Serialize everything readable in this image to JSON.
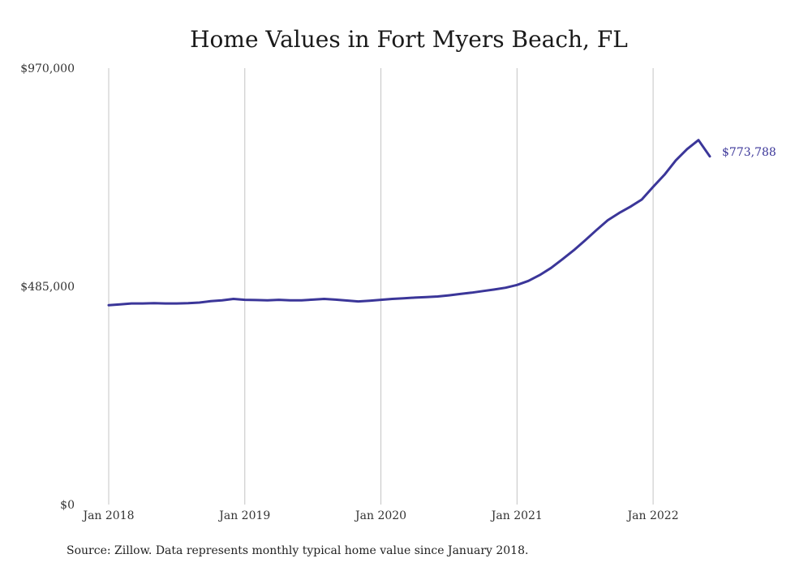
{
  "chart_data": {
    "type": "line",
    "title": "Home Values in Fort Myers Beach, FL",
    "xlabel": "",
    "ylabel": "",
    "ylim": [
      0,
      970000
    ],
    "y_ticks": [
      {
        "value": 0,
        "label": "$0"
      },
      {
        "value": 485000,
        "label": "$485,000"
      },
      {
        "value": 970000,
        "label": "$970,000"
      }
    ],
    "x_ticks": [
      {
        "value": "2018-01",
        "label": "Jan 2018"
      },
      {
        "value": "2019-01",
        "label": "Jan 2019"
      },
      {
        "value": "2020-01",
        "label": "Jan 2020"
      },
      {
        "value": "2021-01",
        "label": "Jan 2021"
      },
      {
        "value": "2022-01",
        "label": "Jan 2022"
      }
    ],
    "xlim": [
      "2018-01",
      "2022-06"
    ],
    "grid": {
      "vertical": true,
      "horizontal": false
    },
    "line_color": "#3b3699",
    "end_label": "$773,788",
    "series": [
      {
        "x": [
          "2018-01",
          "2018-02",
          "2018-03",
          "2018-04",
          "2018-05",
          "2018-06",
          "2018-07",
          "2018-08",
          "2018-09",
          "2018-10",
          "2018-11",
          "2018-12",
          "2019-01",
          "2019-02",
          "2019-03",
          "2019-04",
          "2019-05",
          "2019-06",
          "2019-07",
          "2019-08",
          "2019-09",
          "2019-10",
          "2019-11",
          "2019-12",
          "2020-01",
          "2020-02",
          "2020-03",
          "2020-04",
          "2020-05",
          "2020-06",
          "2020-07",
          "2020-08",
          "2020-09",
          "2020-10",
          "2020-11",
          "2020-12",
          "2021-01",
          "2021-02",
          "2021-03",
          "2021-04",
          "2021-05",
          "2021-06",
          "2021-07",
          "2021-08",
          "2021-09",
          "2021-10",
          "2021-11",
          "2021-12",
          "2022-01",
          "2022-02",
          "2022-03",
          "2022-04",
          "2022-05",
          "2022-06"
        ],
        "values": [
          443000,
          445000,
          447000,
          447000,
          447500,
          447000,
          447000,
          447500,
          449000,
          452000,
          454000,
          457000,
          455000,
          454500,
          454000,
          455000,
          454000,
          454000,
          455500,
          457000,
          455500,
          453500,
          451500,
          453000,
          455000,
          457000,
          458500,
          460000,
          461000,
          462500,
          465000,
          468000,
          471000,
          474500,
          478000,
          482000,
          488000,
          497000,
          510000,
          526000,
          545000,
          565000,
          587000,
          610000,
          632000,
          648000,
          662000,
          678000,
          706000,
          733000,
          765000,
          790000,
          810000,
          773788
        ]
      }
    ],
    "source": "Source: Zillow. Data represents monthly typical home value since January 2018."
  }
}
